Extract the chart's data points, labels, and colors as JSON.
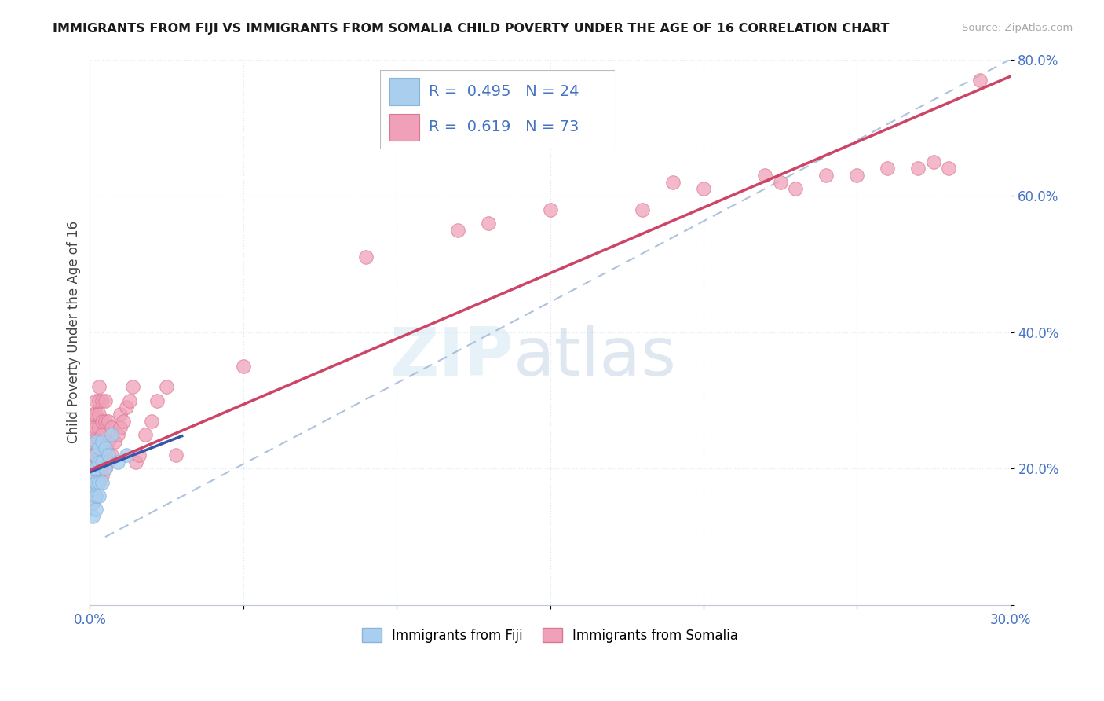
{
  "title": "IMMIGRANTS FROM FIJI VS IMMIGRANTS FROM SOMALIA CHILD POVERTY UNDER THE AGE OF 16 CORRELATION CHART",
  "source": "Source: ZipAtlas.com",
  "ylabel": "Child Poverty Under the Age of 16",
  "xlim": [
    0.0,
    0.3
  ],
  "ylim": [
    0.0,
    0.8
  ],
  "xticks": [
    0.0,
    0.05,
    0.1,
    0.15,
    0.2,
    0.25,
    0.3
  ],
  "xticklabels": [
    "0.0%",
    "",
    "",
    "",
    "",
    "",
    "30.0%"
  ],
  "yticks": [
    0.0,
    0.2,
    0.4,
    0.6,
    0.8
  ],
  "yticklabels": [
    "",
    "20.0%",
    "40.0%",
    "60.0%",
    "80.0%"
  ],
  "fiji_color": "#aacfee",
  "fiji_edge_color": "#88b4dc",
  "somalia_color": "#f0a0b8",
  "somalia_edge_color": "#d87890",
  "fiji_line_color": "#3355aa",
  "somalia_line_color": "#cc4466",
  "watermark_zip": "ZIP",
  "watermark_atlas": "atlas",
  "background_color": "#ffffff",
  "grid_color": "#e0e8f0",
  "diag_color": "#a0b8d8",
  "fiji_x": [
    0.001,
    0.001,
    0.001,
    0.001,
    0.001,
    0.002,
    0.002,
    0.002,
    0.002,
    0.002,
    0.002,
    0.003,
    0.003,
    0.003,
    0.003,
    0.004,
    0.004,
    0.004,
    0.005,
    0.005,
    0.006,
    0.007,
    0.009,
    0.012
  ],
  "fiji_y": [
    0.13,
    0.15,
    0.17,
    0.19,
    0.2,
    0.14,
    0.16,
    0.18,
    0.2,
    0.22,
    0.24,
    0.16,
    0.18,
    0.21,
    0.23,
    0.18,
    0.21,
    0.24,
    0.2,
    0.23,
    0.22,
    0.25,
    0.21,
    0.22
  ],
  "somalia_x": [
    0.001,
    0.001,
    0.001,
    0.001,
    0.001,
    0.001,
    0.001,
    0.001,
    0.002,
    0.002,
    0.002,
    0.002,
    0.002,
    0.002,
    0.002,
    0.002,
    0.003,
    0.003,
    0.003,
    0.003,
    0.003,
    0.003,
    0.003,
    0.003,
    0.004,
    0.004,
    0.004,
    0.004,
    0.004,
    0.004,
    0.005,
    0.005,
    0.005,
    0.005,
    0.005,
    0.006,
    0.006,
    0.006,
    0.007,
    0.007,
    0.008,
    0.009,
    0.01,
    0.01,
    0.011,
    0.012,
    0.013,
    0.014,
    0.015,
    0.016,
    0.018,
    0.02,
    0.022,
    0.025,
    0.028,
    0.05,
    0.09,
    0.12,
    0.13,
    0.15,
    0.18,
    0.19,
    0.2,
    0.22,
    0.225,
    0.23,
    0.24,
    0.25,
    0.26,
    0.27,
    0.275,
    0.28,
    0.29
  ],
  "somalia_y": [
    0.15,
    0.17,
    0.18,
    0.2,
    0.22,
    0.24,
    0.26,
    0.28,
    0.16,
    0.18,
    0.2,
    0.22,
    0.24,
    0.26,
    0.28,
    0.3,
    0.18,
    0.2,
    0.22,
    0.24,
    0.26,
    0.28,
    0.3,
    0.32,
    0.19,
    0.21,
    0.23,
    0.25,
    0.27,
    0.3,
    0.2,
    0.22,
    0.24,
    0.27,
    0.3,
    0.21,
    0.24,
    0.27,
    0.22,
    0.26,
    0.24,
    0.25,
    0.26,
    0.28,
    0.27,
    0.29,
    0.3,
    0.32,
    0.21,
    0.22,
    0.25,
    0.27,
    0.3,
    0.32,
    0.22,
    0.35,
    0.51,
    0.55,
    0.56,
    0.58,
    0.58,
    0.62,
    0.61,
    0.63,
    0.62,
    0.61,
    0.63,
    0.63,
    0.64,
    0.64,
    0.65,
    0.64,
    0.77
  ],
  "fiji_trend_x": [
    0.0,
    0.03
  ],
  "fiji_trend_y": [
    0.195,
    0.248
  ],
  "somalia_trend_x": [
    0.0,
    0.3
  ],
  "somalia_trend_y": [
    0.198,
    0.775
  ]
}
